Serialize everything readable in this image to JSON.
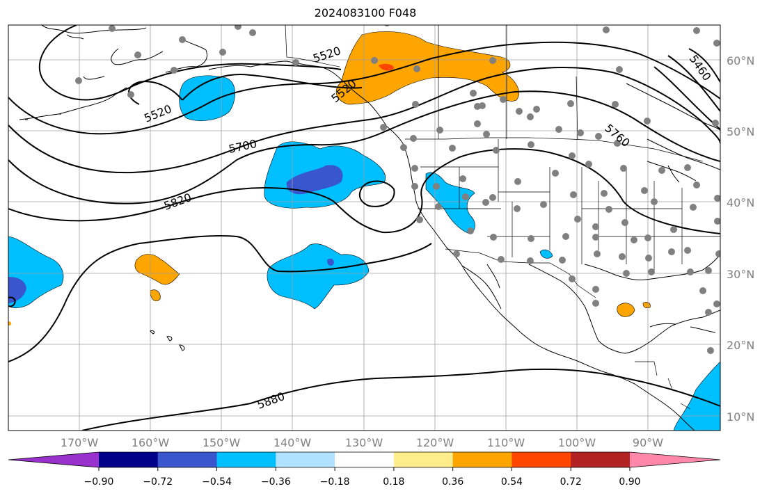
{
  "title": "2024083100 F048",
  "map": {
    "lat_labels": [
      "60°N",
      "50°N",
      "40°N",
      "30°N",
      "20°N",
      "10°N"
    ],
    "lon_labels": [
      "170°W",
      "160°W",
      "150°W",
      "140°W",
      "130°W",
      "120°W",
      "110°W",
      "100°W",
      "90°W"
    ],
    "contour_labels": [
      "5520",
      "5520",
      "5520",
      "5700",
      "5820",
      "5880",
      "5760",
      "5460"
    ],
    "extent": {
      "lon_min": -178,
      "lon_max": -78,
      "lat_min": 8,
      "lat_max": 65
    },
    "colors": {
      "land_line": "#000000",
      "grid": "#a0a0a0",
      "station": "#808080",
      "contour": "#000000"
    }
  },
  "colorbar": {
    "ticks": [
      "−0.90",
      "−0.72",
      "−0.54",
      "−0.36",
      "−0.18",
      "0.18",
      "0.36",
      "0.54",
      "0.72",
      "0.90"
    ],
    "colors": [
      "#9932cc",
      "#00008b",
      "#3a56cf",
      "#00bfff",
      "#b0e2ff",
      "#ffffff",
      "#ffec8b",
      "#ffa500",
      "#ff4500",
      "#b22222",
      "#ff88aa"
    ]
  }
}
